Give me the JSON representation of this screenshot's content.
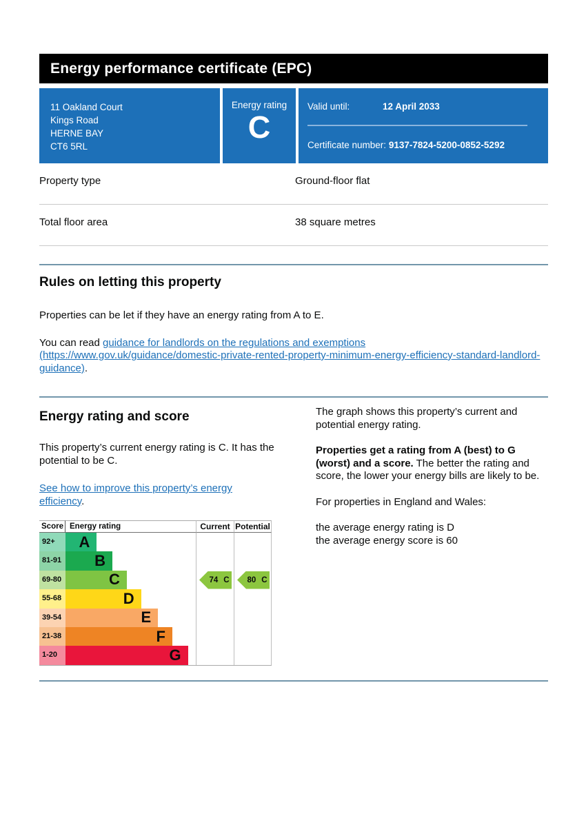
{
  "colors": {
    "brand_blue": "#1d70b8",
    "title_bar_bg": "#000000",
    "link_blue": "#1d70b8",
    "section_divider_blue": "#7296ab",
    "banner_inner_divider": "#8ab4dd"
  },
  "title_bar": {
    "title": "Energy performance certificate (EPC)"
  },
  "banner": {
    "address_lines": [
      "11 Oakland Court",
      "Kings Road",
      "HERNE BAY",
      "CT6 5RL"
    ],
    "energy_rating_label": "Energy rating",
    "energy_rating_value": "C",
    "valid_until_label": "Valid until:",
    "valid_until_value": "12 April 2033",
    "certificate_number_label": "Certificate number:",
    "certificate_number_value": "9137-7824-5200-0852-5292"
  },
  "summary": {
    "rows": [
      {
        "label": "Property type",
        "value": "Ground-floor flat"
      },
      {
        "label": "Total floor area",
        "value": "38 square metres"
      }
    ]
  },
  "rules": {
    "heading": "Rules on letting this property",
    "para1": "Properties can be let if they have an energy rating from A to E.",
    "para2_prefix": "You can read ",
    "link_text": "guidance for landlords on the regulations and exemptions (https://www.gov.uk/guidance/domestic-private-rented-property-minimum-energy-efficiency-standard-landlord-guidance)",
    "para2_suffix": "."
  },
  "rating_section": {
    "heading": "Energy rating and score",
    "para1": "This property’s current energy rating is C. It has the potential to be C.",
    "link_text": "See how to improve this property’s energy efficiency",
    "link_suffix": ".",
    "right_para1": "The graph shows this property’s current and potential energy rating.",
    "right_para2_bold": "Properties get a rating from A (best) to G (worst) and a score.",
    "right_para2_rest": " The better the rating and score, the lower your energy bills are likely to be.",
    "right_para3": "For properties in England and Wales:",
    "right_para4_line1": "the average energy rating is D",
    "right_para4_line2": "the average energy score is 60"
  },
  "chart_data": {
    "type": "bar",
    "variant": "epc-rating-bands",
    "headers": {
      "score": "Score",
      "rating": "Energy rating",
      "current": "Current",
      "potential": "Potential"
    },
    "bands": [
      {
        "score": "92+",
        "letter": "A",
        "color": "#22b573",
        "tint": "#90dab9",
        "width_pct": 24
      },
      {
        "score": "81-91",
        "letter": "B",
        "color": "#1ba94f",
        "tint": "#8dd4a7",
        "width_pct": 36
      },
      {
        "score": "69-80",
        "letter": "C",
        "color": "#7fc443",
        "tint": "#bfe2a1",
        "width_pct": 47
      },
      {
        "score": "55-68",
        "letter": "D",
        "color": "#fed718",
        "tint": "#fff08b",
        "width_pct": 58
      },
      {
        "score": "39-54",
        "letter": "E",
        "color": "#f9a865",
        "tint": "#fcd3b2",
        "width_pct": 71
      },
      {
        "score": "21-38",
        "letter": "F",
        "color": "#ee8424",
        "tint": "#f7c191",
        "width_pct": 82
      },
      {
        "score": "1-20",
        "letter": "G",
        "color": "#e9153b",
        "tint": "#f48a9d",
        "width_pct": 94
      }
    ],
    "current": {
      "score": 74,
      "letter": "C",
      "band_index": 2,
      "color": "#8cc63f"
    },
    "potential": {
      "score": 80,
      "letter": "C",
      "band_index": 2,
      "color": "#8cc63f"
    }
  }
}
